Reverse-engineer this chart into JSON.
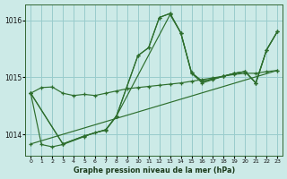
{
  "title": "Graphe pression niveau de la mer (hPa)",
  "background_color": "#cceae7",
  "grid_color": "#99cccc",
  "line_color": "#2d6e2d",
  "xlim": [
    -0.5,
    23.5
  ],
  "ylim": [
    1013.62,
    1016.28
  ],
  "yticks": [
    1014,
    1015,
    1016
  ],
  "xticks": [
    0,
    1,
    2,
    3,
    4,
    5,
    6,
    7,
    8,
    9,
    10,
    11,
    12,
    13,
    14,
    15,
    16,
    17,
    18,
    19,
    20,
    21,
    22,
    23
  ],
  "line1_x": [
    0,
    1,
    2,
    3,
    4,
    5,
    6,
    7,
    8,
    9,
    10,
    11,
    12,
    13,
    14,
    15,
    16,
    17,
    18,
    19,
    20,
    21,
    22,
    23
  ],
  "line1_y": [
    1014.72,
    1014.82,
    1014.83,
    1014.72,
    1014.68,
    1014.7,
    1014.68,
    1014.72,
    1014.76,
    1014.8,
    1014.82,
    1014.84,
    1014.86,
    1014.88,
    1014.9,
    1014.93,
    1014.96,
    1014.99,
    1015.02,
    1015.05,
    1015.07,
    1015.07,
    1015.1,
    1015.12
  ],
  "line2_x": [
    0,
    3,
    5,
    7,
    8,
    10,
    11,
    12,
    13,
    14,
    15,
    16,
    17,
    18,
    19,
    20,
    21,
    22,
    23
  ],
  "line2_y": [
    1014.72,
    1013.83,
    1013.97,
    1014.08,
    1014.32,
    1015.38,
    1015.52,
    1016.05,
    1016.12,
    1015.78,
    1015.08,
    1014.93,
    1014.97,
    1015.02,
    1015.07,
    1015.1,
    1014.9,
    1015.48,
    1015.8
  ],
  "line3_x": [
    0,
    3,
    5,
    7,
    8,
    10,
    11,
    12,
    13,
    14,
    15,
    16,
    17,
    18,
    19,
    20,
    21,
    22,
    23
  ],
  "line3_y": [
    1014.72,
    1013.83,
    1013.97,
    1014.08,
    1014.32,
    1015.38,
    1015.52,
    1016.05,
    1016.12,
    1015.78,
    1015.08,
    1014.93,
    1014.97,
    1015.02,
    1015.07,
    1015.1,
    1014.9,
    1015.48,
    1015.8
  ],
  "line4_x": [
    0,
    23
  ],
  "line4_y": [
    1013.83,
    1015.12
  ],
  "line5_x": [
    0,
    1,
    2,
    3,
    5,
    6,
    7,
    8,
    13,
    14,
    15,
    16,
    17,
    18,
    19,
    20,
    21,
    22,
    23
  ],
  "line5_y": [
    1014.72,
    1013.82,
    1013.78,
    1013.82,
    1013.96,
    1014.03,
    1014.07,
    1014.32,
    1016.1,
    1015.78,
    1015.07,
    1014.9,
    1014.96,
    1015.02,
    1015.07,
    1015.1,
    1014.9,
    1015.48,
    1015.8
  ]
}
